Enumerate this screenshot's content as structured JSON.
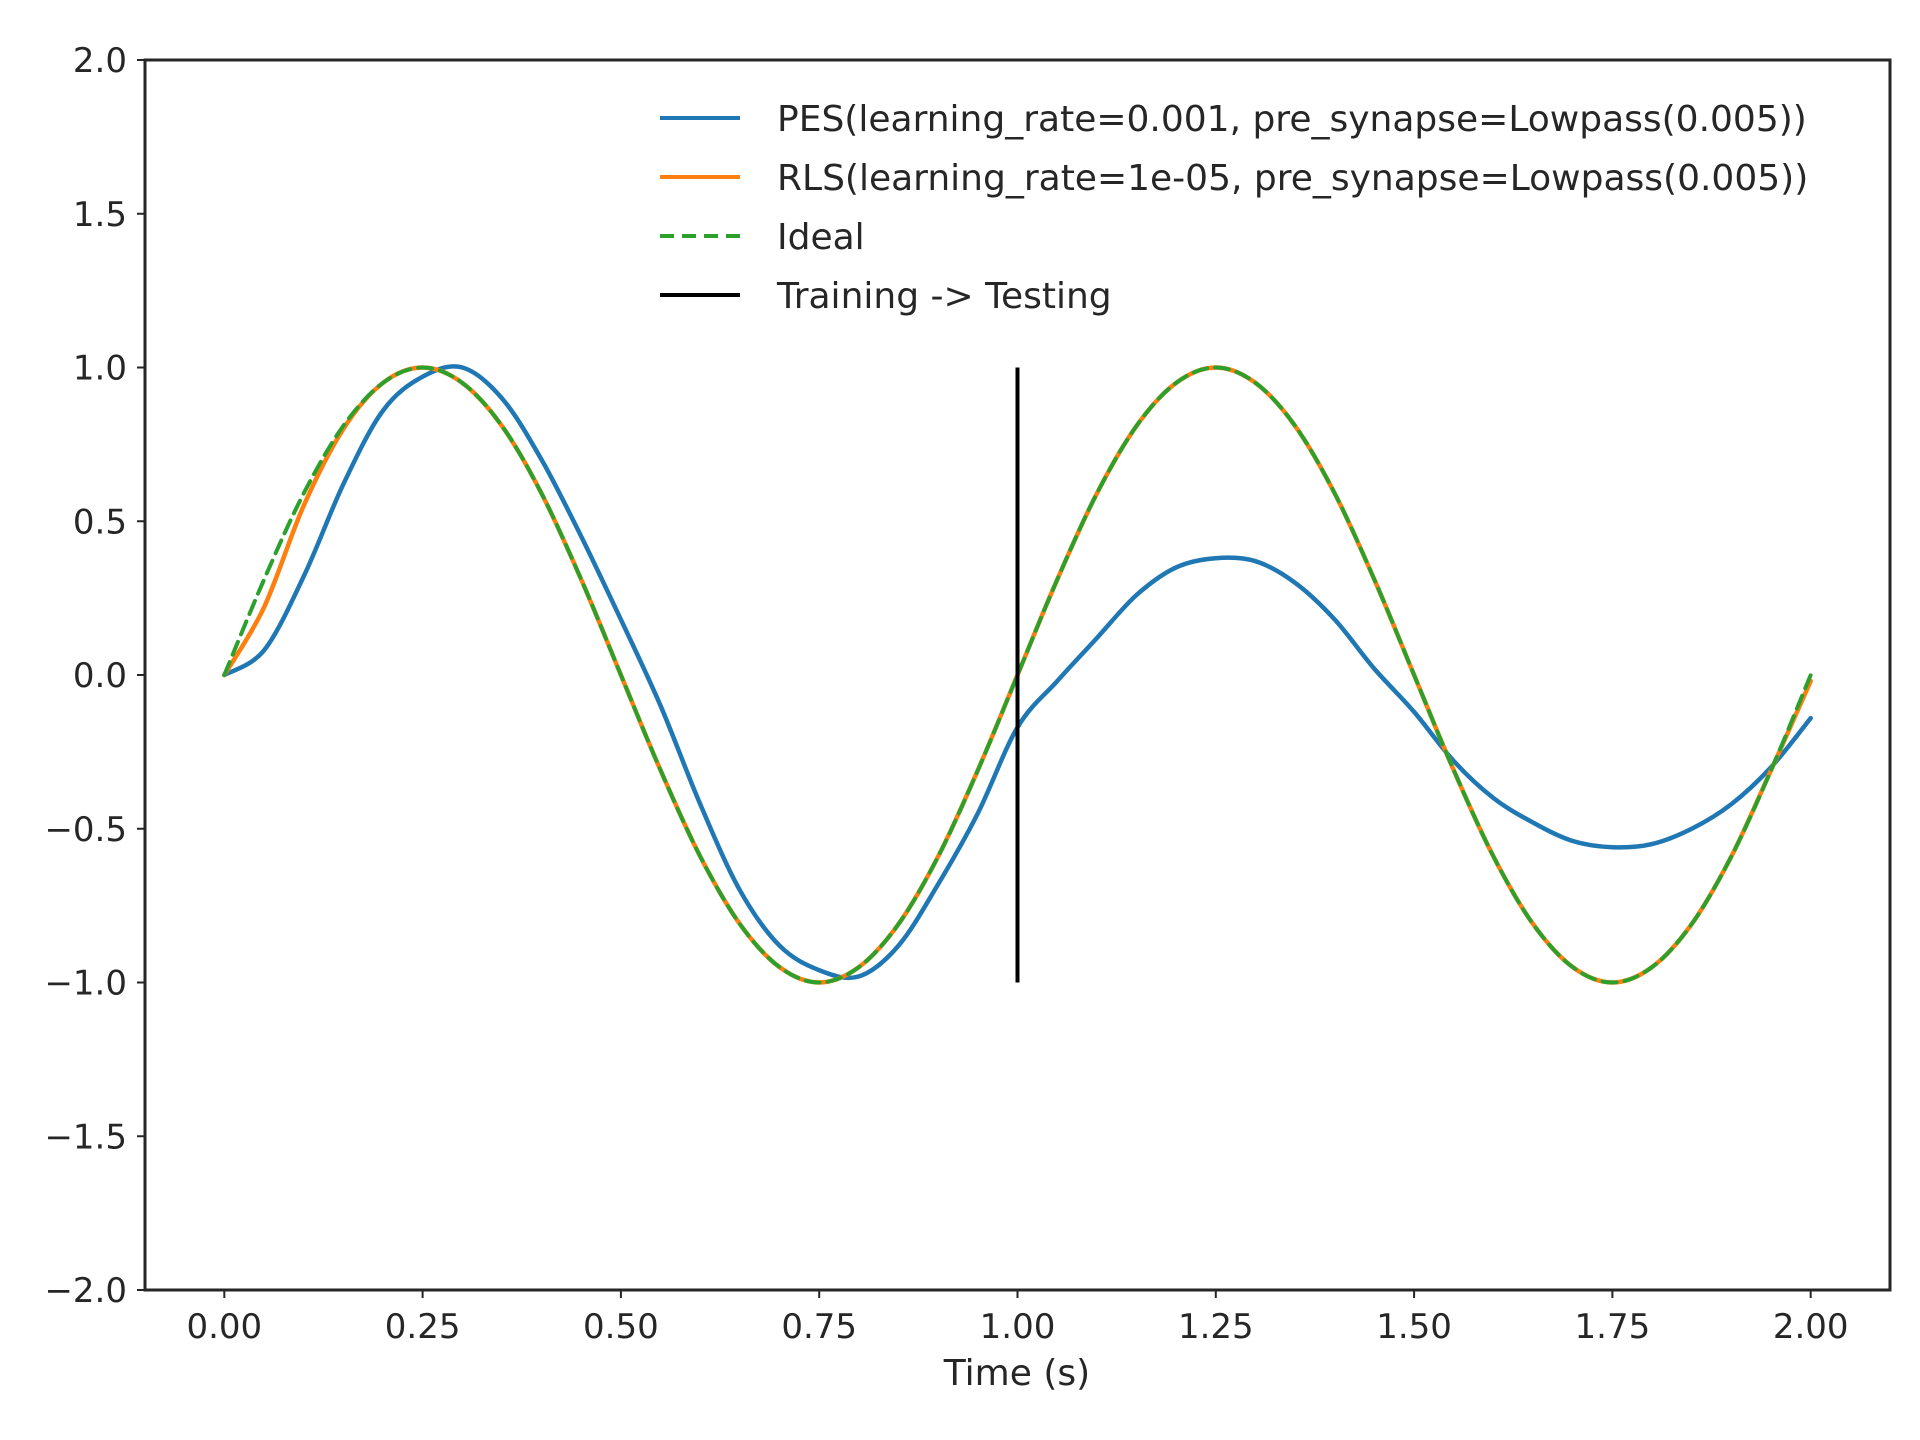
{
  "chart_data": {
    "type": "line",
    "title": "",
    "xlabel": "Time (s)",
    "ylabel": "",
    "xlim": [
      -0.1,
      2.1
    ],
    "ylim": [
      -2.0,
      2.0
    ],
    "x_ticks": [
      0.0,
      0.25,
      0.5,
      0.75,
      1.0,
      1.25,
      1.5,
      1.75,
      2.0
    ],
    "x_tick_labels": [
      "0.00",
      "0.25",
      "0.50",
      "0.75",
      "1.00",
      "1.25",
      "1.50",
      "1.75",
      "2.00"
    ],
    "y_ticks": [
      2.0,
      1.5,
      1.0,
      0.5,
      0.0,
      -0.5,
      -1.0,
      -1.5,
      -2.0
    ],
    "y_tick_labels": [
      "2.0",
      "1.5",
      "1.0",
      "0.5",
      "0.0",
      "−0.5",
      "−1.0",
      "−1.5",
      "−2.0"
    ],
    "grid": false,
    "legend_position": "top-right",
    "series": [
      {
        "name": "PES(learning_rate=0.001, pre_synapse=Lowpass(0.005))",
        "color": "#1f77b4",
        "style": "solid",
        "x": [
          0.0,
          0.05,
          0.1,
          0.15,
          0.2,
          0.25,
          0.3,
          0.35,
          0.4,
          0.45,
          0.5,
          0.55,
          0.6,
          0.65,
          0.7,
          0.75,
          0.8,
          0.85,
          0.9,
          0.95,
          1.0,
          1.05,
          1.1,
          1.15,
          1.2,
          1.25,
          1.3,
          1.35,
          1.4,
          1.45,
          1.5,
          1.55,
          1.6,
          1.65,
          1.7,
          1.75,
          1.8,
          1.85,
          1.9,
          1.95,
          2.0
        ],
        "y": [
          0.0,
          0.08,
          0.32,
          0.62,
          0.86,
          0.97,
          1.0,
          0.9,
          0.7,
          0.45,
          0.18,
          -0.1,
          -0.42,
          -0.7,
          -0.88,
          -0.96,
          -0.98,
          -0.88,
          -0.68,
          -0.45,
          -0.17,
          -0.02,
          0.12,
          0.26,
          0.35,
          0.38,
          0.37,
          0.3,
          0.18,
          0.02,
          -0.12,
          -0.28,
          -0.4,
          -0.48,
          -0.54,
          -0.56,
          -0.55,
          -0.5,
          -0.42,
          -0.3,
          -0.14
        ]
      },
      {
        "name": "RLS(learning_rate=1e-05, pre_synapse=Lowpass(0.005))",
        "color": "#ff7f0e",
        "style": "solid",
        "x": [
          0.0,
          0.05,
          0.1,
          0.15,
          0.2,
          0.25,
          0.3,
          0.35,
          0.4,
          0.45,
          0.5,
          0.55,
          0.6,
          0.65,
          0.7,
          0.75,
          0.8,
          0.85,
          0.9,
          0.95,
          1.0,
          1.05,
          1.1,
          1.15,
          1.2,
          1.25,
          1.3,
          1.35,
          1.4,
          1.45,
          1.5,
          1.55,
          1.6,
          1.65,
          1.7,
          1.75,
          1.8,
          1.85,
          1.9,
          1.95,
          2.0
        ],
        "y": [
          0.0,
          0.22,
          0.55,
          0.8,
          0.95,
          1.0,
          0.95,
          0.81,
          0.59,
          0.31,
          0.0,
          -0.31,
          -0.59,
          -0.81,
          -0.95,
          -1.0,
          -0.95,
          -0.81,
          -0.59,
          -0.31,
          0.0,
          0.31,
          0.59,
          0.81,
          0.95,
          1.0,
          0.95,
          0.81,
          0.59,
          0.31,
          0.0,
          -0.31,
          -0.59,
          -0.81,
          -0.95,
          -1.0,
          -0.95,
          -0.81,
          -0.59,
          -0.31,
          -0.02
        ]
      },
      {
        "name": "Ideal",
        "color": "#2ca02c",
        "style": "dashed",
        "x": [
          0.0,
          0.05,
          0.1,
          0.15,
          0.2,
          0.25,
          0.3,
          0.35,
          0.4,
          0.45,
          0.5,
          0.55,
          0.6,
          0.65,
          0.7,
          0.75,
          0.8,
          0.85,
          0.9,
          0.95,
          1.0,
          1.05,
          1.1,
          1.15,
          1.2,
          1.25,
          1.3,
          1.35,
          1.4,
          1.45,
          1.5,
          1.55,
          1.6,
          1.65,
          1.7,
          1.75,
          1.8,
          1.85,
          1.9,
          1.95,
          2.0
        ],
        "y": [
          0.0,
          0.31,
          0.59,
          0.81,
          0.95,
          1.0,
          0.95,
          0.81,
          0.59,
          0.31,
          0.0,
          -0.31,
          -0.59,
          -0.81,
          -0.95,
          -1.0,
          -0.95,
          -0.81,
          -0.59,
          -0.31,
          0.0,
          0.31,
          0.59,
          0.81,
          0.95,
          1.0,
          0.95,
          0.81,
          0.59,
          0.31,
          0.0,
          -0.31,
          -0.59,
          -0.81,
          -0.95,
          -1.0,
          -0.95,
          -0.81,
          -0.59,
          -0.31,
          0.0
        ]
      }
    ],
    "vline": {
      "name": "Training -> Testing",
      "color": "#000000",
      "x": 1.0,
      "ymin": -1.0,
      "ymax": 1.0
    }
  }
}
